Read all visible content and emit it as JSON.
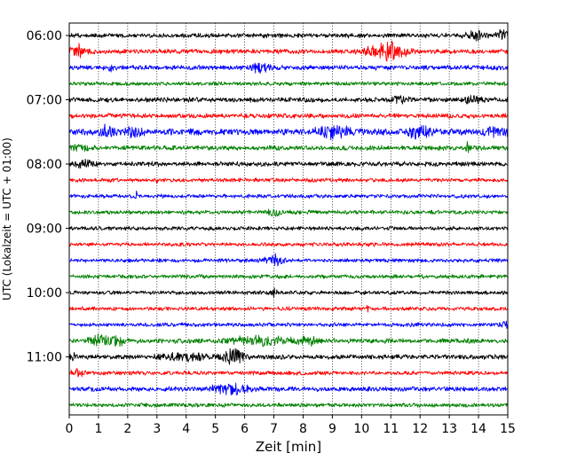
{
  "chart_data": {
    "type": "line",
    "title": "",
    "xlabel": "Zeit  [min]",
    "ylabel": "UTC (Lokalzeit = UTC + 01:00)",
    "xlim": [
      0,
      15
    ],
    "x_ticks": [
      "0",
      "1",
      "2",
      "3",
      "4",
      "5",
      "6",
      "7",
      "8",
      "9",
      "10",
      "11",
      "12",
      "13",
      "14",
      "15"
    ],
    "y_ticks": [
      "06:00",
      "07:00",
      "08:00",
      "09:00",
      "10:00",
      "11:00"
    ],
    "grid_x": true,
    "trace_interval_min": 15,
    "series": [
      {
        "name": "06:00",
        "color": "#000000",
        "amplitude": 3,
        "bursts": [
          {
            "t": 13.9,
            "w": 0.25,
            "a": 6
          },
          {
            "t": 14.8,
            "w": 0.2,
            "a": 5
          }
        ]
      },
      {
        "name": "06:15",
        "color": "#ff0000",
        "amplitude": 3,
        "bursts": [
          {
            "t": 0.3,
            "w": 0.25,
            "a": 9
          },
          {
            "t": 11.0,
            "w": 0.5,
            "a": 11
          },
          {
            "t": 10.3,
            "w": 0.3,
            "a": 4
          }
        ]
      },
      {
        "name": "06:30",
        "color": "#0000ff",
        "amplitude": 3,
        "bursts": [
          {
            "t": 6.5,
            "w": 0.4,
            "a": 5
          },
          {
            "t": 1.4,
            "w": 0.1,
            "a": 4
          }
        ]
      },
      {
        "name": "06:45",
        "color": "#008000",
        "amplitude": 2.5,
        "bursts": []
      },
      {
        "name": "07:00",
        "color": "#000000",
        "amplitude": 3,
        "bursts": [
          {
            "t": 11.3,
            "w": 0.3,
            "a": 4
          },
          {
            "t": 13.8,
            "w": 0.3,
            "a": 4
          }
        ]
      },
      {
        "name": "07:15",
        "color": "#ff0000",
        "amplitude": 3,
        "bursts": []
      },
      {
        "name": "07:30",
        "color": "#0000ff",
        "amplitude": 4,
        "bursts": [
          {
            "t": 1.3,
            "w": 0.3,
            "a": 6
          },
          {
            "t": 2.2,
            "w": 0.3,
            "a": 5
          },
          {
            "t": 9.0,
            "w": 0.6,
            "a": 6
          },
          {
            "t": 12.0,
            "w": 0.5,
            "a": 6
          },
          {
            "t": 14.6,
            "w": 0.4,
            "a": 5
          }
        ]
      },
      {
        "name": "07:45",
        "color": "#008000",
        "amplitude": 3,
        "bursts": [
          {
            "t": 0.4,
            "w": 0.3,
            "a": 4
          },
          {
            "t": 13.6,
            "w": 0.05,
            "a": 7
          }
        ]
      },
      {
        "name": "08:00",
        "color": "#000000",
        "amplitude": 3,
        "bursts": [
          {
            "t": 0.5,
            "w": 0.3,
            "a": 4
          }
        ]
      },
      {
        "name": "08:15",
        "color": "#ff0000",
        "amplitude": 2.5,
        "bursts": [
          {
            "t": 3.0,
            "w": 0.05,
            "a": 5
          }
        ]
      },
      {
        "name": "08:30",
        "color": "#0000ff",
        "amplitude": 2.5,
        "bursts": [
          {
            "t": 2.3,
            "w": 0.05,
            "a": 4
          }
        ]
      },
      {
        "name": "08:45",
        "color": "#008000",
        "amplitude": 2.5,
        "bursts": [
          {
            "t": 7.0,
            "w": 0.2,
            "a": 4
          }
        ]
      },
      {
        "name": "09:00",
        "color": "#000000",
        "amplitude": 2.5,
        "bursts": []
      },
      {
        "name": "09:15",
        "color": "#ff0000",
        "amplitude": 2.5,
        "bursts": []
      },
      {
        "name": "09:30",
        "color": "#0000ff",
        "amplitude": 2.5,
        "bursts": [
          {
            "t": 7.0,
            "w": 0.3,
            "a": 6
          }
        ]
      },
      {
        "name": "09:45",
        "color": "#008000",
        "amplitude": 2.5,
        "bursts": []
      },
      {
        "name": "10:00",
        "color": "#000000",
        "amplitude": 2.5,
        "bursts": [
          {
            "t": 7.0,
            "w": 0.1,
            "a": 4
          }
        ]
      },
      {
        "name": "10:15",
        "color": "#ff0000",
        "amplitude": 2.5,
        "bursts": [
          {
            "t": 10.2,
            "w": 0.05,
            "a": 4
          }
        ]
      },
      {
        "name": "10:30",
        "color": "#0000ff",
        "amplitude": 2.5,
        "bursts": [
          {
            "t": 14.9,
            "w": 0.1,
            "a": 5
          }
        ]
      },
      {
        "name": "10:45",
        "color": "#008000",
        "amplitude": 3,
        "bursts": [
          {
            "t": 1.0,
            "w": 0.3,
            "a": 6
          },
          {
            "t": 1.6,
            "w": 0.3,
            "a": 7
          },
          {
            "t": 6.5,
            "w": 1.2,
            "a": 4
          },
          {
            "t": 8.1,
            "w": 0.3,
            "a": 5
          }
        ]
      },
      {
        "name": "11:00",
        "color": "#000000",
        "amplitude": 3,
        "bursts": [
          {
            "t": 0.1,
            "w": 0.1,
            "a": 5
          },
          {
            "t": 5.6,
            "w": 0.35,
            "a": 10
          },
          {
            "t": 4.0,
            "w": 0.8,
            "a": 4
          }
        ]
      },
      {
        "name": "11:15",
        "color": "#ff0000",
        "amplitude": 2.5,
        "bursts": [
          {
            "t": 0.3,
            "w": 0.2,
            "a": 5
          }
        ]
      },
      {
        "name": "11:30",
        "color": "#0000ff",
        "amplitude": 3,
        "bursts": [
          {
            "t": 5.5,
            "w": 0.6,
            "a": 6
          }
        ]
      },
      {
        "name": "11:45",
        "color": "#008000",
        "amplitude": 2.5,
        "bursts": []
      }
    ]
  }
}
